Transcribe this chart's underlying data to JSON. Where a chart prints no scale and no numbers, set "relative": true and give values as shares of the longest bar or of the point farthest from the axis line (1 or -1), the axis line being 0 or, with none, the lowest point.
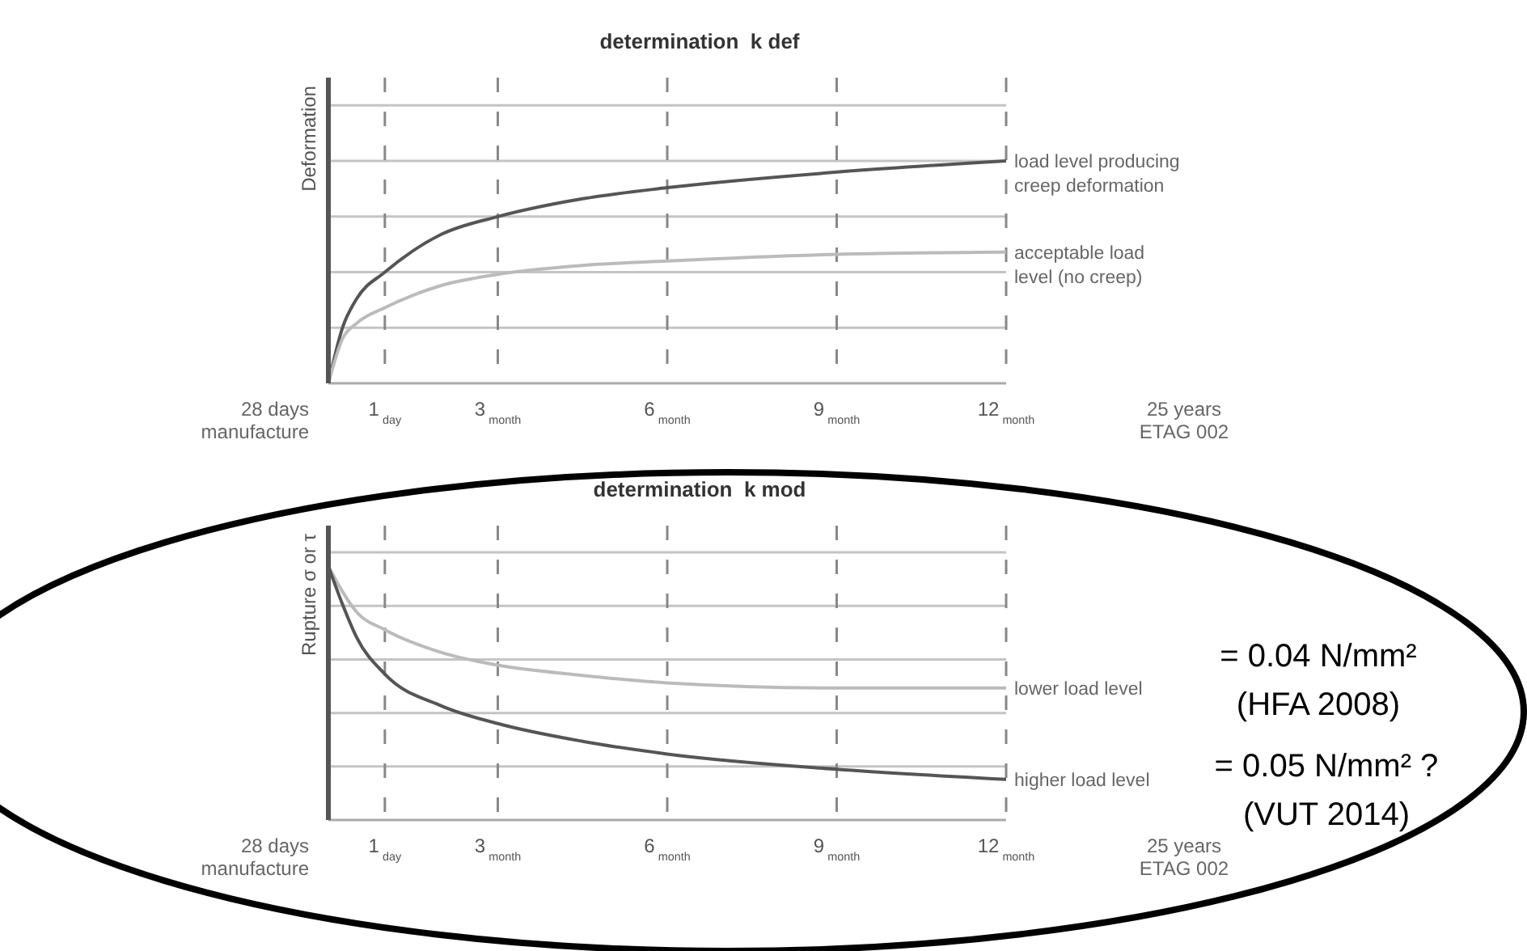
{
  "chart_data": [
    {
      "type": "line",
      "title": "determination  k def",
      "ylabel": "Deformation",
      "relative": true,
      "grid": true,
      "x": [
        0,
        0.25,
        0.5,
        1,
        2,
        3,
        4.5,
        6,
        9,
        12
      ],
      "xlim": [
        0,
        12
      ],
      "xticks": [
        {
          "value": 1,
          "label": "1$_{day}$"
        },
        {
          "value": 3,
          "label": "3$_{month}$"
        },
        {
          "value": 6,
          "label": "6$_{month}$"
        },
        {
          "value": 9,
          "label": "9$_{month}$"
        },
        {
          "value": 12,
          "label": "12$_{month}$"
        }
      ],
      "series": [
        {
          "name": "load level producing\ncreep deformation",
          "color": "#555555",
          "values": [
            0,
            0.25,
            0.38,
            0.5,
            0.67,
            0.75,
            0.83,
            0.88,
            0.95,
            1
          ]
        },
        {
          "name": "acceptable load\nlevel (no creep)",
          "color": "#bbbbbb",
          "values": [
            0,
            0.2,
            0.27,
            0.34,
            0.44,
            0.49,
            0.53,
            0.55,
            0.58,
            0.59
          ]
        }
      ],
      "annotations": [
        "28 days\nmanufacture",
        "25 years\nETAG 002"
      ]
    },
    {
      "type": "line",
      "title": "determination  k mod",
      "ylabel": "Rupture σ or τ",
      "relative": true,
      "grid": true,
      "x": [
        0,
        0.25,
        0.5,
        1,
        2,
        3,
        4.5,
        6,
        9,
        12
      ],
      "xlim": [
        0,
        12
      ],
      "xticks": [
        {
          "value": 1,
          "label": "1$_{day}$"
        },
        {
          "value": 3,
          "label": "3$_{month}$"
        },
        {
          "value": 6,
          "label": "6$_{month}$"
        },
        {
          "value": 9,
          "label": "9$_{month}$"
        },
        {
          "value": 12,
          "label": "12$_{month}$"
        }
      ],
      "series": [
        {
          "name": "lower load level",
          "color": "#bbbbbb",
          "values": [
            1,
            0.9,
            0.82,
            0.75,
            0.66,
            0.61,
            0.57,
            0.54,
            0.52,
            0.52
          ]
        },
        {
          "name": "higher load level",
          "color": "#555555",
          "values": [
            1,
            0.85,
            0.72,
            0.575,
            0.45,
            0.38,
            0.31,
            0.26,
            0.2,
            0.16
          ]
        }
      ],
      "annotations": [
        "28 days\nmanufacture",
        "25 years\nETAG 002",
        "= 0.04 N/mm²\n(HFA 2008)",
        "= 0.05 N/mm² ?\n(VUT 2014)"
      ]
    }
  ]
}
